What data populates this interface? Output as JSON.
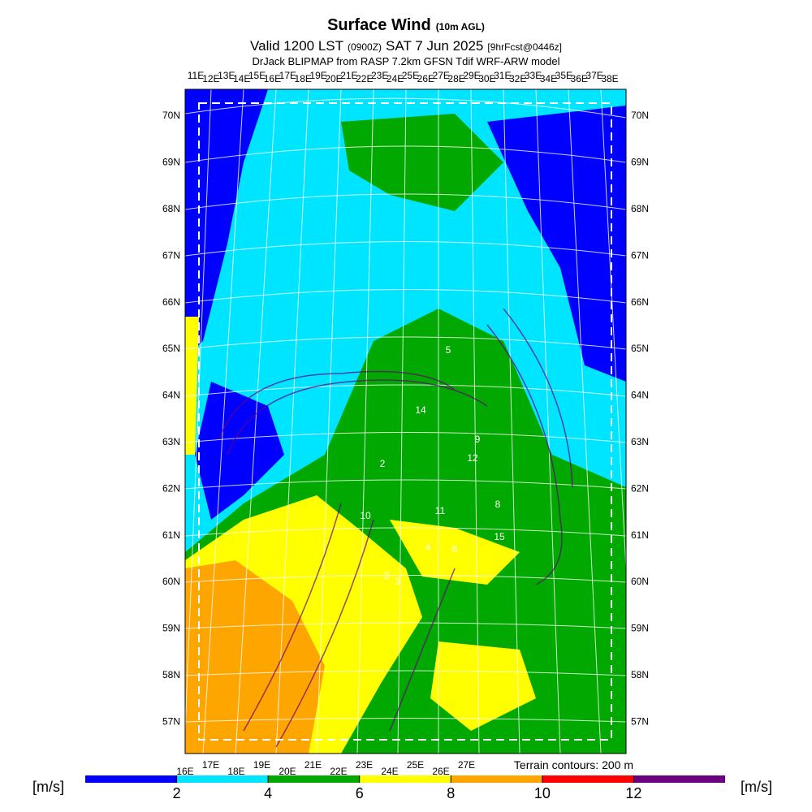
{
  "title": {
    "main": "Surface Wind",
    "suffix": "(10m AGL)"
  },
  "subtitle": {
    "valid": "Valid 1200 LST",
    "zulu": "(0900Z)",
    "date": "SAT 7 Jun 2025",
    "fcst": "[9hrFcst@0446z]"
  },
  "source": "DrJack BLIPMAP from RASP 7.2km GFSN Tdif WRF-ARW model",
  "lat_labels": [
    "70N",
    "69N",
    "68N",
    "67N",
    "66N",
    "65N",
    "64N",
    "63N",
    "62N",
    "61N",
    "60N",
    "59N",
    "58N",
    "57N"
  ],
  "top_lon_labels": [
    "11E",
    "12E",
    "13E",
    "14E",
    "15E",
    "16E",
    "17E",
    "18E",
    "19E",
    "20E",
    "21E",
    "22E",
    "23E",
    "24E",
    "25E",
    "26E",
    "27E",
    "28E",
    "29E",
    "30E",
    "31E",
    "32E",
    "33E",
    "34E",
    "35E",
    "36E",
    "37E",
    "38E"
  ],
  "bottom_lon_labels": [
    "16E",
    "17E",
    "18E",
    "19E",
    "20E",
    "21E",
    "22E",
    "23E",
    "24E",
    "25E",
    "26E",
    "27E"
  ],
  "map_labels": [
    "5",
    "14",
    "2",
    "9",
    "12",
    "10",
    "11",
    "8",
    "15",
    "4",
    "6",
    "3",
    "3"
  ],
  "terrain_note": "Terrain contours: 200 m",
  "colorbar": {
    "unit": "[m/s]",
    "lim": [
      0,
      14
    ],
    "ticks": [
      2,
      4,
      6,
      8,
      10,
      12
    ],
    "bins": [
      0,
      2,
      4,
      6,
      8,
      10,
      12,
      14
    ],
    "colors": [
      "#0000ff",
      "#00e5ff",
      "#00a800",
      "#ffff00",
      "#ffa500",
      "#ff0000",
      "#6a0080"
    ]
  }
}
